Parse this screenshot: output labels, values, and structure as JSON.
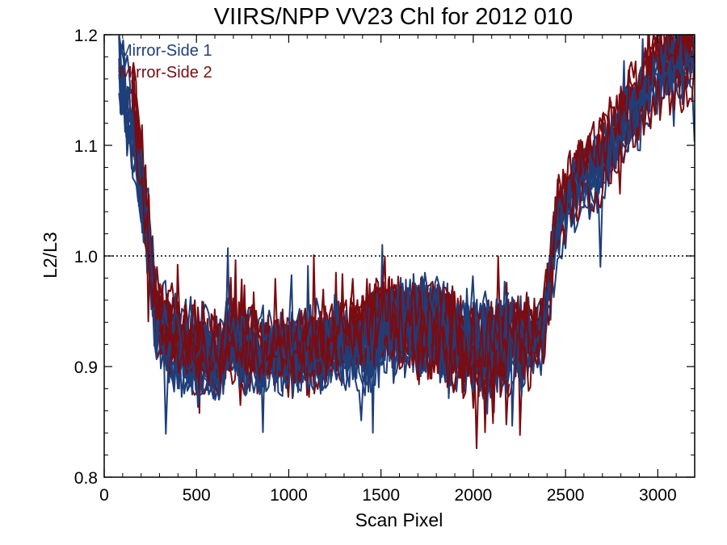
{
  "chart_data": {
    "type": "line",
    "title": "VIIRS/NPP VV23 Chl for 2012 010",
    "xlabel": "Scan Pixel",
    "ylabel": "L2/L3",
    "xlim": [
      0,
      3200
    ],
    "ylim": [
      0.8,
      1.2
    ],
    "xticks": [
      "0",
      "500",
      "1000",
      "1500",
      "2000",
      "2500",
      "3000"
    ],
    "yticks": [
      "0.8",
      "0.9",
      "1.0",
      "1.1",
      "1.2"
    ],
    "reference_line": {
      "y": 1.0,
      "style": "dotted"
    },
    "legend": {
      "placement": "top-left"
    },
    "grid": false,
    "series": [
      {
        "name": "Mirror-Side 1",
        "color": "#1f3f7a",
        "line_count": 12,
        "x": [
          80,
          130,
          180,
          230,
          280,
          350,
          450,
          550,
          620,
          680,
          750,
          850,
          1000,
          1200,
          1400,
          1500,
          1600,
          1700,
          1800,
          1900,
          2000,
          2100,
          2200,
          2300,
          2380,
          2450,
          2550,
          2700,
          2850,
          3000,
          3200
        ],
        "y": [
          1.18,
          1.13,
          1.09,
          1.03,
          0.945,
          0.925,
          0.915,
          0.912,
          0.905,
          0.925,
          0.915,
          0.912,
          0.91,
          0.915,
          0.915,
          0.925,
          0.935,
          0.94,
          0.935,
          0.925,
          0.915,
          0.915,
          0.925,
          0.92,
          0.93,
          1.02,
          1.06,
          1.08,
          1.12,
          1.16,
          1.18
        ]
      },
      {
        "name": "Mirror-Side 2",
        "color": "#7a0c12",
        "line_count": 12,
        "x": [
          150,
          180,
          230,
          280,
          350,
          450,
          550,
          620,
          680,
          750,
          850,
          1000,
          1200,
          1400,
          1500,
          1600,
          1700,
          1800,
          1900,
          2000,
          2100,
          2200,
          2300,
          2380,
          2450,
          2550,
          2700,
          2850,
          3000,
          3200
        ],
        "y": [
          1.14,
          1.1,
          1.03,
          0.945,
          0.922,
          0.912,
          0.91,
          0.902,
          0.922,
          0.912,
          0.91,
          0.908,
          0.915,
          0.925,
          0.94,
          0.935,
          0.935,
          0.93,
          0.92,
          0.91,
          0.912,
          0.92,
          0.918,
          0.93,
          1.03,
          1.07,
          1.09,
          1.13,
          1.17,
          1.18
        ]
      }
    ]
  }
}
